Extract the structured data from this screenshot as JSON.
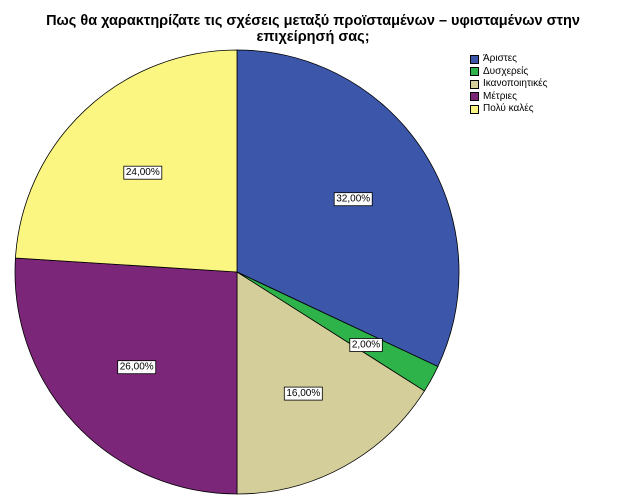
{
  "chart_data": {
    "type": "pie",
    "title_lines": [
      "Πως θα χαρακτηρίζατε τις σχέσεις μεταξύ προϊσταμένων – υφισταμένων στην",
      "επιχείρησή σας;"
    ],
    "legend_position": "top-right",
    "slices": [
      {
        "name": "Άριστες",
        "value": 32.0,
        "label": "32,00%",
        "color": "#3c56aa"
      },
      {
        "name": "Δυσχερείς",
        "value": 2.0,
        "label": "2,00%",
        "color": "#2eb34a"
      },
      {
        "name": "Ικανοποιητικές",
        "value": 16.0,
        "label": "16,00%",
        "color": "#d4cf9a"
      },
      {
        "name": "Μέτριες",
        "value": 26.0,
        "label": "26,00%",
        "color": "#7b2678"
      },
      {
        "name": "Πολύ καλές",
        "value": 24.0,
        "label": "24,00%",
        "color": "#fbf682"
      }
    ]
  }
}
